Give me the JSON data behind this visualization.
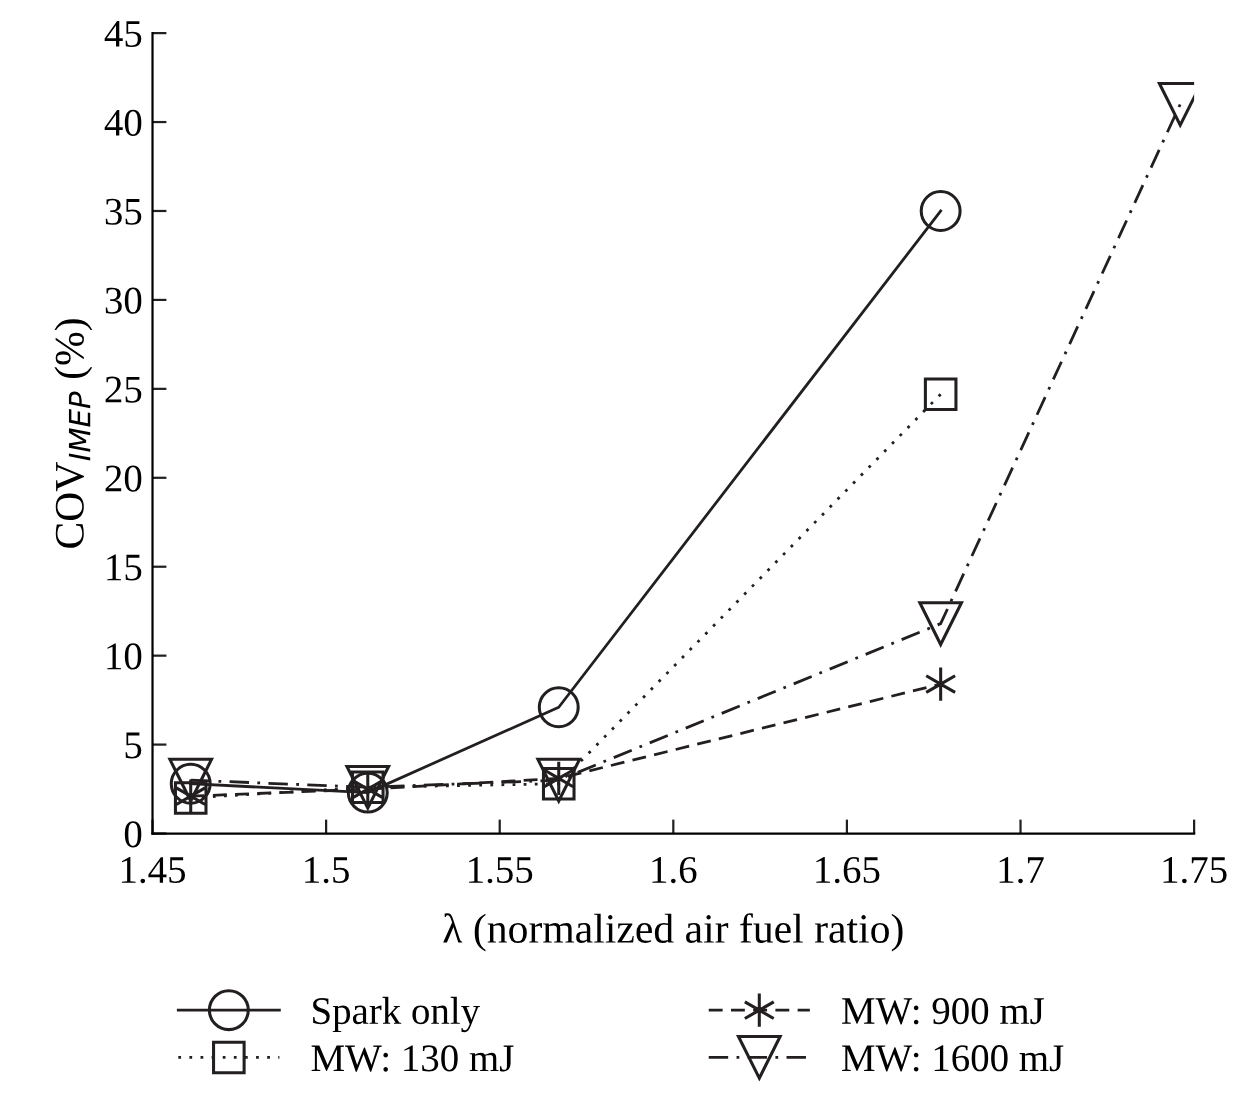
{
  "chart_data": {
    "type": "line",
    "xlabel": "λ (normalized air fuel ratio)",
    "ylabel": "COV$_{IMEP}$ (%)",
    "xlim": [
      1.45,
      1.75
    ],
    "xticks": [
      1.45,
      1.5,
      1.55,
      1.6,
      1.65,
      1.7,
      1.75
    ],
    "ylim": [
      0,
      45
    ],
    "yticks": [
      0,
      5,
      10,
      15,
      20,
      25,
      30,
      35,
      40,
      45
    ],
    "grid": false,
    "legend": "bottom",
    "series": [
      {
        "name": "Spark only",
        "color": "#231f20",
        "marker": "circle",
        "line_style": "solid",
        "x": [
          1.461,
          1.512,
          1.567,
          1.677
        ],
        "values": [
          2.8,
          2.3,
          7.1,
          35.0
        ]
      },
      {
        "name": "MW: 130 mJ",
        "color": "#231f20",
        "marker": "square",
        "line_style": "dotted",
        "x": [
          1.461,
          1.512,
          1.567,
          1.677
        ],
        "values": [
          2.0,
          2.6,
          2.8,
          24.7
        ]
      },
      {
        "name": "MW: 900 mJ",
        "color": "#231f20",
        "marker": "cross",
        "line_style": "dashed",
        "x": [
          1.461,
          1.512,
          1.567,
          1.677
        ],
        "values": [
          2.1,
          2.5,
          3.1,
          8.4
        ]
      },
      {
        "name": "MW: 1600 mJ",
        "color": "#231f20",
        "marker": "triangle",
        "line_style": "dashdot",
        "x": [
          1.461,
          1.512,
          1.567,
          1.677,
          1.746
        ],
        "values": [
          3.0,
          2.6,
          3.0,
          11.8,
          41.0
        ]
      }
    ]
  }
}
